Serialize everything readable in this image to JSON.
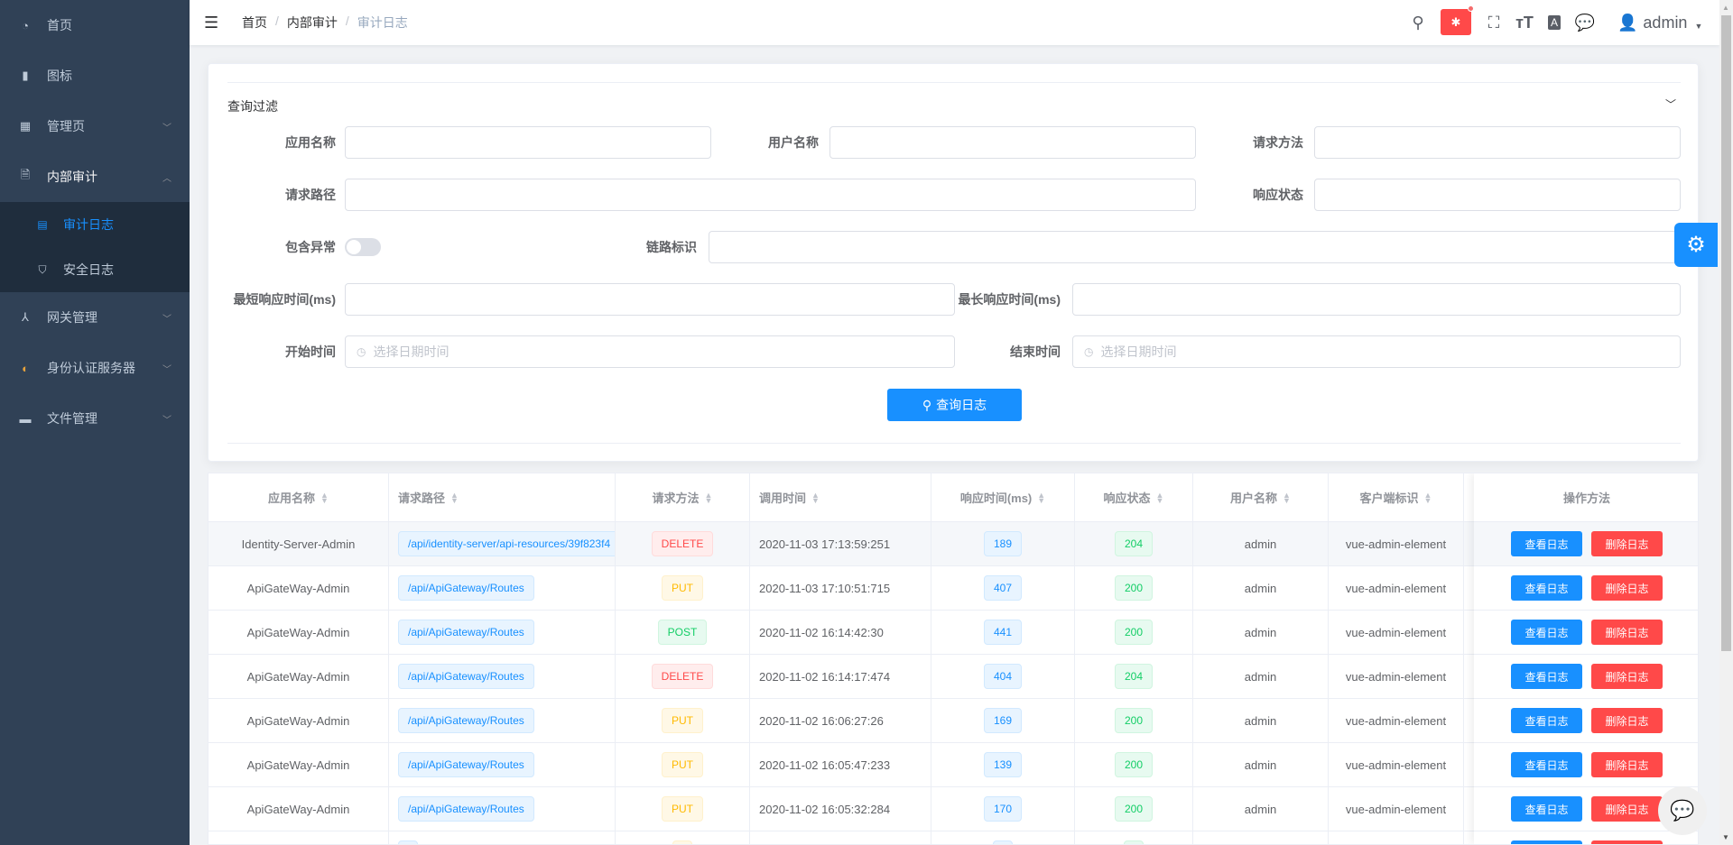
{
  "sidebar": {
    "items": [
      {
        "label": "首页",
        "icon": "dashboard-icon"
      },
      {
        "label": "图标",
        "icon": "icon-icon"
      },
      {
        "label": "管理页",
        "icon": "grid-icon"
      },
      {
        "label": "内部审计",
        "icon": "audit-icon"
      },
      {
        "label": "网关管理",
        "icon": "gateway-icon"
      },
      {
        "label": "身份认证服务器",
        "icon": "identity-icon"
      },
      {
        "label": "文件管理",
        "icon": "folder-icon"
      }
    ],
    "subitems": [
      {
        "label": "审计日志",
        "active": true
      },
      {
        "label": "安全日志"
      }
    ]
  },
  "header": {
    "breadcrumb": [
      "首页",
      "内部审计",
      "审计日志"
    ],
    "user": "admin"
  },
  "filter": {
    "title": "查询过滤",
    "app_name": "应用名称",
    "user_name": "用户名称",
    "method": "请求方法",
    "path": "请求路径",
    "status": "响应状态",
    "has_exception": "包含异常",
    "trace_id": "链路标识",
    "min_time": "最短响应时间(ms)",
    "max_time": "最长响应时间(ms)",
    "start": "开始时间",
    "end": "结束时间",
    "date_placeholder": "选择日期时间",
    "search_button": "查询日志",
    "has_exception_value": false
  },
  "table": {
    "headers": [
      "应用名称",
      "请求路径",
      "请求方法",
      "调用时间",
      "响应时间(ms)",
      "响应状态",
      "用户名称",
      "客户端标识",
      "操作方法"
    ],
    "view_label": "查看日志",
    "delete_label": "删除日志",
    "rows": [
      [
        "Identity-Server-Admin",
        "/api/identity-server/api-resources/39f823f4",
        "DELETE",
        "2020-11-03 17:13:59:251",
        "189",
        "204",
        "admin",
        "vue-admin-element"
      ],
      [
        "ApiGateWay-Admin",
        "/api/ApiGateway/Routes",
        "PUT",
        "2020-11-03 17:10:51:715",
        "407",
        "200",
        "admin",
        "vue-admin-element"
      ],
      [
        "ApiGateWay-Admin",
        "/api/ApiGateway/Routes",
        "POST",
        "2020-11-02 16:14:42:30",
        "441",
        "200",
        "admin",
        "vue-admin-element"
      ],
      [
        "ApiGateWay-Admin",
        "/api/ApiGateway/Routes",
        "DELETE",
        "2020-11-02 16:14:17:474",
        "404",
        "204",
        "admin",
        "vue-admin-element"
      ],
      [
        "ApiGateWay-Admin",
        "/api/ApiGateway/Routes",
        "PUT",
        "2020-11-02 16:06:27:26",
        "169",
        "200",
        "admin",
        "vue-admin-element"
      ],
      [
        "ApiGateWay-Admin",
        "/api/ApiGateway/Routes",
        "PUT",
        "2020-11-02 16:05:47:233",
        "139",
        "200",
        "admin",
        "vue-admin-element"
      ],
      [
        "ApiGateWay-Admin",
        "/api/ApiGateway/Routes",
        "PUT",
        "2020-11-02 16:05:32:284",
        "170",
        "200",
        "admin",
        "vue-admin-element"
      ]
    ]
  },
  "colors": {
    "primary": "#1890ff",
    "danger": "#ff4949",
    "sidebar": "#304156"
  }
}
